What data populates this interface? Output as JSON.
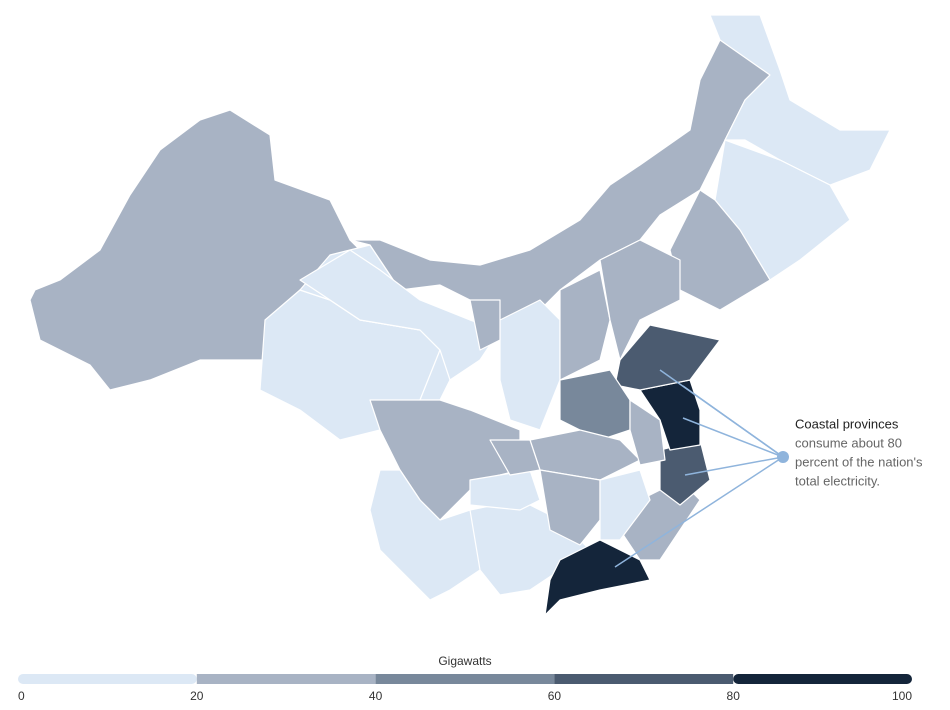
{
  "chart_data": {
    "type": "choropleth",
    "legend_title": "Gigawatts",
    "scale": {
      "ticks": [
        0,
        20,
        40,
        60,
        80,
        100
      ],
      "colors": [
        "#dce8f5",
        "#a8b3c4",
        "#78889b",
        "#4b5b70",
        "#14253a"
      ]
    },
    "regions": {
      "values": [
        30,
        10,
        10,
        30,
        10,
        10,
        30,
        10,
        30,
        10,
        10,
        90,
        30,
        70,
        90,
        70,
        50,
        30,
        30,
        10,
        30,
        10,
        30,
        30,
        10,
        30,
        30
      ]
    },
    "annotation": {
      "title": "Coastal provinces",
      "text_lines": [
        "consume about 80",
        "percent of the nation's",
        "total electricity."
      ]
    }
  }
}
